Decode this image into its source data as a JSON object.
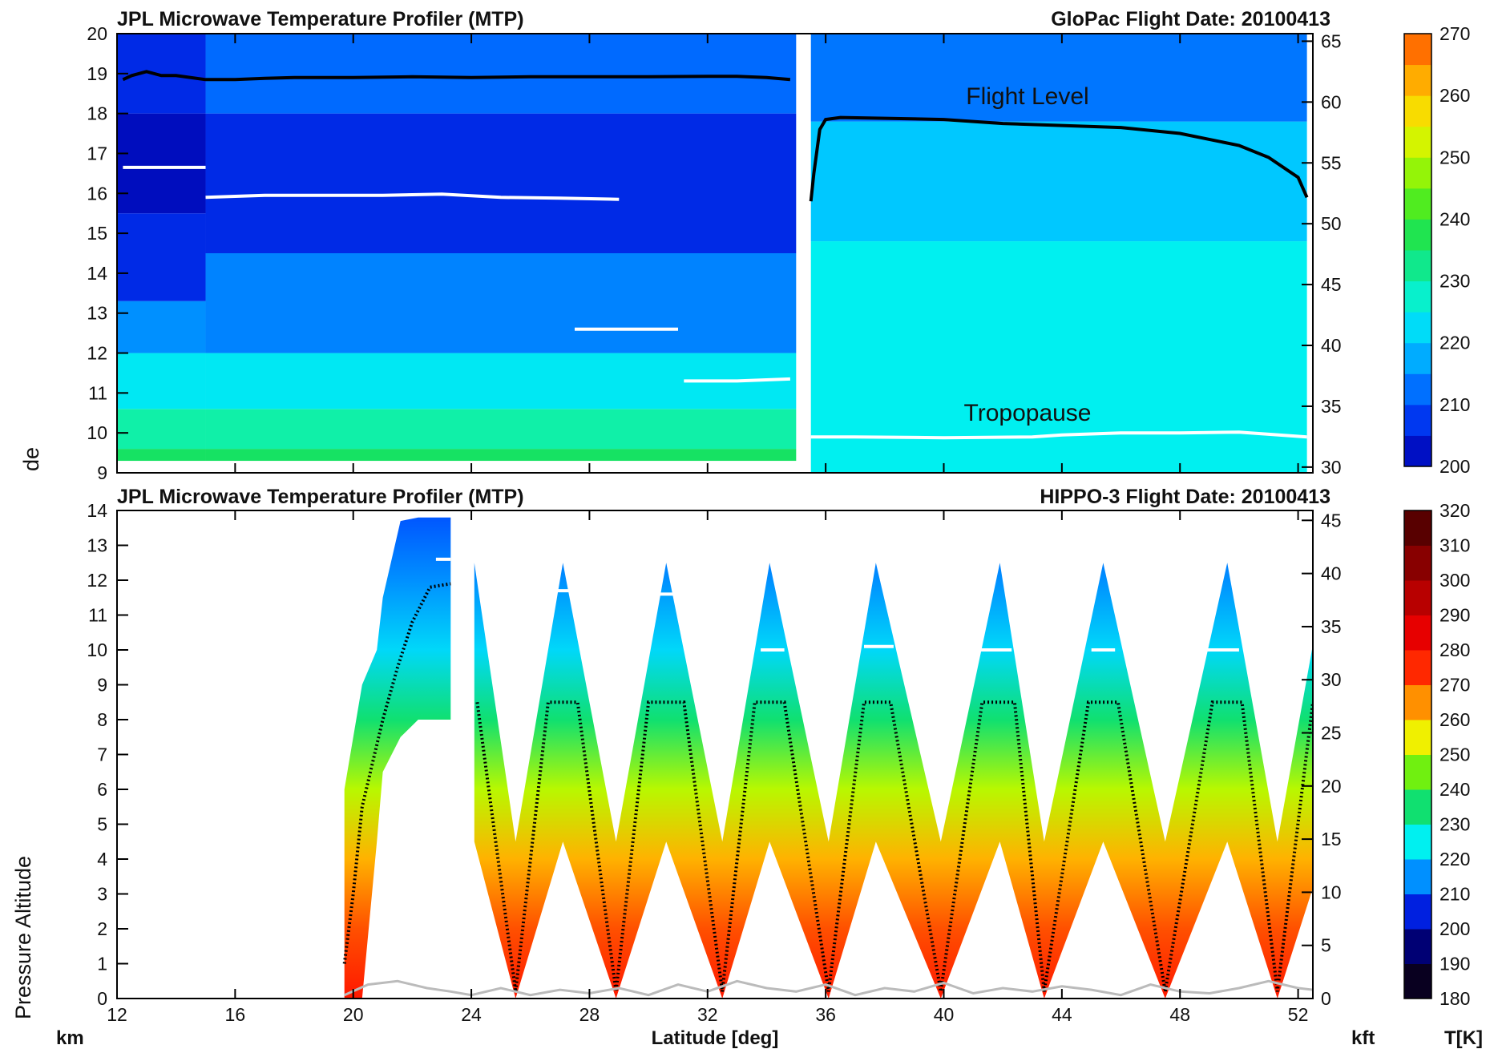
{
  "chart_data": [
    {
      "type": "heatmap",
      "title": "JPL Microwave Temperature Profiler (MTP)",
      "subtitle": "GloPac  Flight Date: 20100413",
      "xlim": [
        12,
        52.5
      ],
      "ylim": [
        9,
        20
      ],
      "y_ticks": [
        9,
        10,
        11,
        12,
        13,
        14,
        15,
        16,
        17,
        18,
        19,
        20
      ],
      "y2_label": "",
      "y2_ticks": [
        30,
        35,
        40,
        45,
        50,
        55,
        60,
        65
      ],
      "colorbar": {
        "label": "",
        "min": 200,
        "max": 270,
        "step": 5,
        "tick_labels": [
          200,
          210,
          220,
          230,
          240,
          250,
          260,
          270
        ]
      },
      "regions": [
        {
          "x": [
            12,
            15
          ],
          "y_top": 20,
          "y_bottom": 9.3,
          "bands": [
            [
              9.3,
              9.6,
              236
            ],
            [
              9.6,
              10.6,
              230
            ],
            [
              10.6,
              12,
              224
            ],
            [
              12,
              13.3,
              215
            ],
            [
              13.3,
              15.5,
              206
            ],
            [
              15.5,
              18,
              202
            ],
            [
              18,
              20,
              206
            ]
          ]
        },
        {
          "x": [
            15,
            35
          ],
          "y_top": 20,
          "y_bottom": 9.3,
          "bands": [
            [
              9.3,
              9.6,
              236
            ],
            [
              9.6,
              10.6,
              230
            ],
            [
              10.6,
              12,
              224
            ],
            [
              12,
              14.5,
              214
            ],
            [
              14.5,
              18,
              206
            ],
            [
              18,
              20,
              212
            ]
          ]
        },
        {
          "x": [
            35.5,
            52.3
          ],
          "y_top": 20,
          "y_bottom": 9,
          "bands": [
            [
              9,
              14.8,
              225
            ],
            [
              14.8,
              17.8,
              220
            ],
            [
              17.8,
              20,
              213
            ]
          ]
        }
      ],
      "series": [
        {
          "name": "Flight Level",
          "color": "#000000",
          "x": [
            12.2,
            12.5,
            13,
            13.5,
            14,
            15,
            16,
            17,
            18,
            20,
            22,
            24,
            26,
            28,
            30,
            32,
            33,
            34,
            34.8,
            null,
            35.5,
            35.6,
            35.8,
            36,
            36.5,
            38,
            40,
            42,
            44,
            46,
            48,
            50,
            51,
            52,
            52.3
          ],
          "y": [
            18.85,
            18.95,
            19.05,
            18.95,
            18.95,
            18.85,
            18.85,
            18.88,
            18.9,
            18.9,
            18.92,
            18.9,
            18.92,
            18.92,
            18.92,
            18.93,
            18.93,
            18.9,
            18.85,
            null,
            15.8,
            16.5,
            17.6,
            17.85,
            17.9,
            17.88,
            17.85,
            17.75,
            17.7,
            17.65,
            17.5,
            17.2,
            16.9,
            16.4,
            15.9
          ]
        },
        {
          "name": "Tropopause",
          "color": "#ffffff",
          "x": [
            12.2,
            15,
            null,
            15,
            17,
            19,
            21,
            23,
            25,
            27,
            29,
            null,
            27.5,
            29,
            31,
            null,
            31.2,
            33,
            34.8,
            null,
            35.5,
            37,
            40,
            43,
            44,
            46,
            48,
            50,
            52.3
          ],
          "y": [
            16.65,
            16.65,
            null,
            15.9,
            15.95,
            15.95,
            15.95,
            15.98,
            15.9,
            15.88,
            15.85,
            null,
            12.6,
            12.6,
            12.6,
            null,
            11.3,
            11.3,
            11.35,
            null,
            9.9,
            9.9,
            9.88,
            9.9,
            9.95,
            10,
            10,
            10.02,
            9.9
          ]
        }
      ],
      "annotations": [
        "Flight Level",
        "Tropopause"
      ]
    },
    {
      "type": "heatmap",
      "title": "JPL Microwave Temperature Profiler (MTP)",
      "subtitle": "HIPPO-3  Flight Date: 20100413",
      "xlabel": "Latitude [deg]",
      "ylabel": "Pressure Altitude",
      "xlim": [
        12,
        52.5
      ],
      "ylim": [
        0,
        14
      ],
      "x_ticks": [
        12,
        16,
        20,
        24,
        28,
        32,
        36,
        40,
        44,
        48,
        52
      ],
      "y_ticks": [
        0,
        1,
        2,
        3,
        4,
        5,
        6,
        7,
        8,
        9,
        10,
        11,
        12,
        13,
        14
      ],
      "y2_ticks": [
        0,
        5,
        10,
        15,
        20,
        25,
        30,
        35,
        40,
        45
      ],
      "unit_left": "km",
      "unit_right": "kft",
      "colorbar": {
        "label": "T[K]",
        "min": 180,
        "max": 320,
        "step": 10,
        "tick_labels": [
          180,
          190,
          200,
          210,
          220,
          230,
          240,
          250,
          260,
          270,
          280,
          290,
          300,
          310,
          320
        ]
      },
      "segments": [
        {
          "x": [
            19.7,
            20.3,
            20.8,
            21.0,
            21.6,
            22.2,
            23.3
          ],
          "top": [
            6.0,
            9.0,
            10.0,
            11.5,
            13.7,
            13.8,
            13.8
          ],
          "bottom": [
            0.0,
            0.0,
            4.5,
            6.5,
            7.5,
            8.0,
            8.0
          ]
        },
        {
          "x": [
            24.1,
            25.5,
            27.1,
            28.9,
            30.6,
            32.5,
            34.1,
            36.1,
            37.7,
            39.9,
            41.9,
            43.4,
            45.4,
            47.5,
            49.6,
            51.3,
            53.0
          ],
          "top": [
            12.5,
            4.5,
            12.5,
            4.5,
            12.5,
            4.5,
            12.5,
            4.5,
            12.5,
            4.5,
            12.5,
            4.5,
            12.5,
            4.5,
            12.5,
            4.5,
            12.5
          ],
          "bottom": [
            4.5,
            0.0,
            4.5,
            0.0,
            4.5,
            0.0,
            4.5,
            0.0,
            4.5,
            0.0,
            4.5,
            0.0,
            4.5,
            0.0,
            4.5,
            0.0,
            4.5
          ]
        }
      ],
      "temperature_profile_K": [
        [
          0,
          277
        ],
        [
          2,
          270
        ],
        [
          4,
          262
        ],
        [
          6,
          250
        ],
        [
          8,
          235
        ],
        [
          10,
          222
        ],
        [
          12,
          215
        ],
        [
          14,
          210
        ]
      ],
      "series": [
        {
          "name": "",
          "color": "#000000",
          "x": [
            19.7,
            20.0,
            20.3,
            21.0,
            21.5,
            22.0,
            22.6,
            23.3,
            null,
            24.2,
            25.5,
            26.6,
            27.1,
            27.6,
            28.9,
            30.0,
            30.6,
            31.2,
            32.5,
            33.6,
            34.1,
            34.6,
            36.1,
            37.3,
            37.7,
            38.2,
            39.9,
            41.3,
            41.9,
            42.4,
            43.4,
            44.9,
            45.4,
            45.9,
            47.5,
            49.1,
            49.6,
            50.1,
            51.3,
            52.5,
            53.0
          ],
          "y": [
            1.0,
            3.0,
            5.5,
            8.0,
            9.5,
            10.8,
            11.8,
            11.9,
            null,
            8.5,
            0.2,
            8.5,
            8.5,
            8.5,
            0.2,
            8.5,
            8.5,
            8.5,
            0.2,
            8.5,
            8.5,
            8.5,
            0.2,
            8.5,
            8.5,
            8.5,
            0.2,
            8.5,
            8.5,
            8.5,
            0.2,
            8.5,
            8.5,
            8.5,
            0.2,
            8.5,
            8.5,
            8.5,
            0.2,
            8.5,
            8.5
          ]
        },
        {
          "name": "",
          "color": "#ffffff",
          "x": [
            22.8,
            23.3,
            null,
            26.8,
            27.5,
            null,
            30.2,
            31.0,
            null,
            33.8,
            34.6,
            null,
            37.3,
            38.3,
            null,
            41.2,
            42.3,
            null,
            45.0,
            45.8,
            null,
            48.8,
            50.0,
            null,
            52.5,
            53.0
          ],
          "y": [
            12.6,
            12.6,
            null,
            11.7,
            11.7,
            null,
            11.6,
            11.6,
            null,
            10.0,
            10.0,
            null,
            10.1,
            10.1,
            null,
            10.0,
            10.0,
            null,
            10.0,
            10.0,
            null,
            10.0,
            10.0,
            null,
            10.1,
            10.1
          ]
        },
        {
          "name": "",
          "color": "#bbbbbb",
          "x": [
            19.7,
            20.5,
            21.5,
            22.5,
            23.3,
            24.0,
            25.0,
            26.0,
            27.0,
            28.0,
            29.0,
            30.0,
            31.0,
            32.0,
            33.0,
            34.0,
            35.0,
            36.0,
            37.0,
            38.0,
            39.0,
            40.0,
            41.0,
            42.0,
            43.0,
            44.0,
            45.0,
            46.0,
            47.0,
            48.0,
            49.0,
            50.0,
            51.0,
            52.0,
            53.0
          ],
          "y": [
            0.1,
            0.4,
            0.5,
            0.3,
            0.2,
            0.1,
            0.3,
            0.1,
            0.25,
            0.15,
            0.3,
            0.1,
            0.4,
            0.2,
            0.5,
            0.3,
            0.2,
            0.4,
            0.1,
            0.3,
            0.2,
            0.45,
            0.15,
            0.3,
            0.2,
            0.35,
            0.25,
            0.1,
            0.4,
            0.2,
            0.15,
            0.3,
            0.5,
            0.3,
            0.2
          ]
        }
      ]
    }
  ],
  "fig": {
    "partial_ylabel_top": "de"
  }
}
